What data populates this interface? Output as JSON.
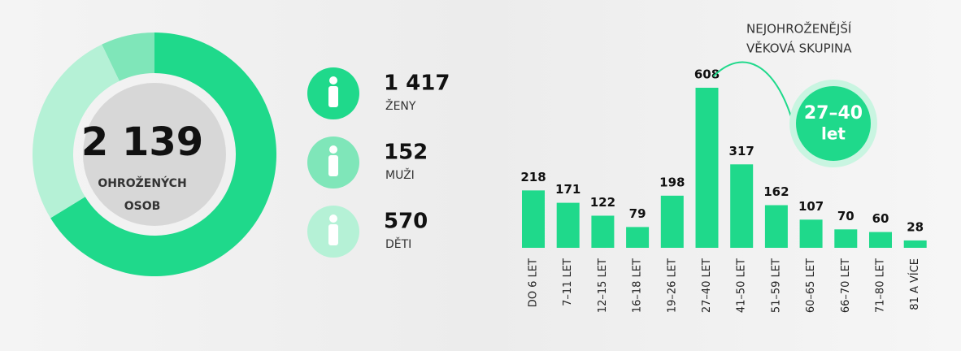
{
  "chart_data": [
    {
      "type": "donut",
      "center_title": "2 139",
      "center_subtitle": [
        "OHROŽENÝCH",
        "OSOB"
      ],
      "series": [
        {
          "name": "ŽENY",
          "color": "#1fd98b",
          "value": 1417,
          "value_label": "1 417"
        },
        {
          "name": "MUŽI",
          "color": "#7fe6b9",
          "value": 152,
          "value_label": "152"
        },
        {
          "name": "DĚTI",
          "color": "#b5f1d6",
          "value": 570,
          "value_label": "570"
        }
      ]
    },
    {
      "type": "bar",
      "annotation": [
        "NEJOHROŽENĚJŠÍ",
        "VĚKOVÁ SKUPINA"
      ],
      "highlight": [
        "27–40",
        "let"
      ],
      "color": "#1fd98b",
      "categories": [
        "DO 6 LET",
        "7–11 LET",
        "12–15 LET",
        "16–18 LET",
        "19–26 LET",
        "27–40 LET",
        "41–50 LET",
        "51–59 LET",
        "60–65 LET",
        "66–70 LET",
        "71–80 LET",
        "81 A VÍCE"
      ],
      "values": [
        218,
        171,
        122,
        79,
        198,
        608,
        317,
        162,
        107,
        70,
        60,
        28
      ]
    }
  ]
}
